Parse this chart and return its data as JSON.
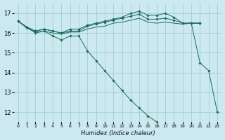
{
  "xlabel": "Humidex (Indice chaleur)",
  "bg_color": "#cce8f0",
  "grid_color": "#99ccbb",
  "line_color": "#1a6b5a",
  "xlim": [
    -0.5,
    23.5
  ],
  "ylim": [
    11.5,
    17.5
  ],
  "yticks": [
    12,
    13,
    14,
    15,
    16,
    17
  ],
  "xticks": [
    0,
    1,
    2,
    3,
    4,
    5,
    6,
    7,
    8,
    9,
    10,
    11,
    12,
    13,
    14,
    15,
    16,
    17,
    18,
    19,
    20,
    21,
    22,
    23
  ],
  "series": {
    "line_diag": {
      "x": [
        0,
        1,
        2,
        3,
        4,
        5,
        6,
        7,
        8,
        9,
        10,
        11,
        12,
        13,
        14,
        15,
        16,
        17,
        18,
        19,
        20,
        21,
        22,
        23
      ],
      "y": [
        16.6,
        16.3,
        16.0,
        16.1,
        15.85,
        15.65,
        15.85,
        15.85,
        15.1,
        14.6,
        14.1,
        13.6,
        13.1,
        12.6,
        12.2,
        11.8,
        11.5,
        null,
        null,
        null,
        null,
        null,
        null,
        null
      ],
      "markers": true
    },
    "line_upper1": {
      "x": [
        0,
        1,
        2,
        3,
        4,
        5,
        6,
        7,
        8,
        9,
        10,
        11,
        12,
        13,
        14,
        15,
        16,
        17,
        18,
        19,
        20,
        21
      ],
      "y": [
        16.6,
        16.3,
        16.1,
        16.2,
        16.1,
        16.0,
        16.2,
        16.2,
        16.4,
        16.5,
        16.6,
        16.7,
        16.8,
        17.0,
        17.1,
        16.9,
        16.9,
        17.0,
        16.8,
        16.5,
        16.5,
        16.5
      ],
      "markers": true
    },
    "line_upper2": {
      "x": [
        0,
        1,
        2,
        3,
        4,
        5,
        6,
        7,
        8,
        9,
        10,
        11,
        12,
        13,
        14,
        15,
        16,
        17,
        18,
        19,
        20,
        21
      ],
      "y": [
        16.6,
        16.3,
        16.1,
        16.2,
        16.1,
        16.0,
        16.1,
        16.1,
        16.35,
        16.45,
        16.55,
        16.65,
        16.75,
        16.85,
        16.95,
        16.7,
        16.7,
        16.75,
        16.65,
        16.5,
        16.5,
        16.5
      ],
      "markers": true
    },
    "line_upper3": {
      "x": [
        0,
        1,
        2,
        3,
        4,
        5,
        6,
        7,
        8,
        9,
        10,
        11,
        12,
        13,
        14,
        15,
        16,
        17,
        18,
        19,
        20,
        21
      ],
      "y": [
        16.6,
        16.25,
        16.05,
        16.1,
        16.0,
        15.95,
        16.05,
        16.05,
        16.2,
        16.3,
        16.35,
        16.5,
        16.55,
        16.65,
        16.75,
        16.55,
        16.5,
        16.55,
        16.5,
        16.45,
        16.5,
        16.5
      ],
      "markers": false
    },
    "line_drop": {
      "x": [
        20,
        21,
        22,
        23
      ],
      "y": [
        16.5,
        14.5,
        14.1,
        12.0
      ],
      "markers": true
    }
  }
}
